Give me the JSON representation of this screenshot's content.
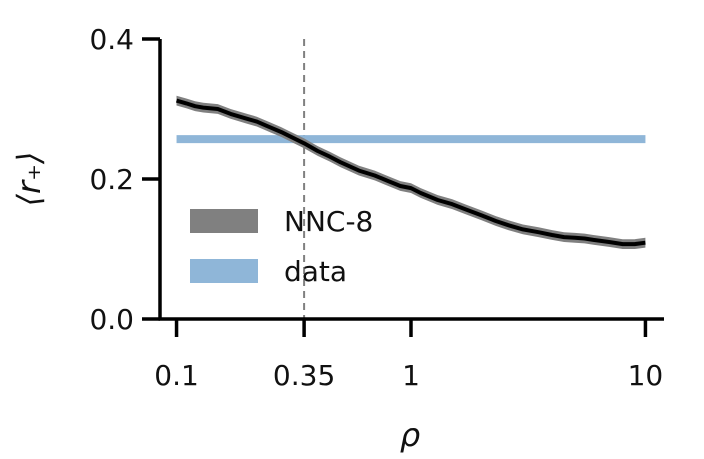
{
  "chart_data": {
    "type": "line",
    "xlabel": "ρ",
    "ylabel": "⟨r₊⟩",
    "xscale": "log",
    "xlim": [
      0.085,
      12
    ],
    "ylim": [
      0,
      0.4
    ],
    "xticks": [
      {
        "value": 0.1,
        "label": "0.1"
      },
      {
        "value": 0.35,
        "label": "0.35"
      },
      {
        "value": 1,
        "label": "1"
      },
      {
        "value": 10,
        "label": "10"
      }
    ],
    "yticks": [
      {
        "value": 0.0,
        "label": "0.0"
      },
      {
        "value": 0.2,
        "label": "0.2"
      },
      {
        "value": 0.4,
        "label": "0.4"
      }
    ],
    "grid": false,
    "legend_position": "center-left",
    "reference_line": {
      "x": 0.35,
      "style": "dashed",
      "color": "#808080"
    },
    "series": [
      {
        "name": "NNC-8",
        "color": "#000000",
        "band_color": "#808080",
        "x": [
          0.1,
          0.11,
          0.12,
          0.13,
          0.15,
          0.17,
          0.2,
          0.22,
          0.25,
          0.28,
          0.3,
          0.35,
          0.4,
          0.45,
          0.5,
          0.6,
          0.7,
          0.8,
          0.9,
          1.0,
          1.1,
          1.3,
          1.5,
          1.7,
          2.0,
          2.3,
          2.6,
          3.0,
          3.5,
          4.0,
          4.5,
          5.0,
          5.5,
          6.0,
          7.0,
          8.0,
          9.0,
          10.0
        ],
        "y": [
          0.312,
          0.308,
          0.304,
          0.302,
          0.3,
          0.293,
          0.286,
          0.282,
          0.274,
          0.267,
          0.262,
          0.251,
          0.24,
          0.232,
          0.224,
          0.212,
          0.205,
          0.197,
          0.19,
          0.187,
          0.18,
          0.17,
          0.164,
          0.157,
          0.148,
          0.14,
          0.134,
          0.128,
          0.124,
          0.12,
          0.117,
          0.116,
          0.115,
          0.113,
          0.11,
          0.107,
          0.107,
          0.109
        ],
        "band": 0.007
      },
      {
        "name": "data",
        "color": "#8fb6d8",
        "constant": 0.257,
        "x_range": [
          0.1,
          10.0
        ]
      }
    ]
  }
}
